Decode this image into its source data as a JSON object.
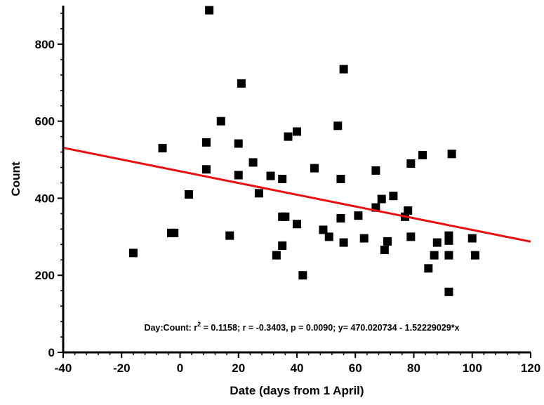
{
  "chart_data": {
    "type": "scatter",
    "title": "",
    "xlabel": "Date (days from 1 April)",
    "ylabel": "Count",
    "xlim": [
      -40,
      120
    ],
    "ylim": [
      0,
      900
    ],
    "xticks": [
      -40,
      -20,
      0,
      20,
      40,
      60,
      80,
      100,
      120
    ],
    "yticks": [
      0,
      200,
      400,
      600,
      800
    ],
    "grid": false,
    "legend": "none",
    "marker_color": "#000000",
    "line_color": "#e81010",
    "points": [
      {
        "x": -16,
        "y": 258
      },
      {
        "x": -6,
        "y": 530
      },
      {
        "x": -3,
        "y": 310
      },
      {
        "x": -2,
        "y": 310
      },
      {
        "x": 3,
        "y": 410
      },
      {
        "x": 9,
        "y": 545
      },
      {
        "x": 9,
        "y": 475
      },
      {
        "x": 10,
        "y": 888
      },
      {
        "x": 14,
        "y": 600
      },
      {
        "x": 17,
        "y": 303
      },
      {
        "x": 20,
        "y": 542
      },
      {
        "x": 20,
        "y": 460
      },
      {
        "x": 21,
        "y": 698
      },
      {
        "x": 25,
        "y": 493
      },
      {
        "x": 27,
        "y": 413
      },
      {
        "x": 31,
        "y": 458
      },
      {
        "x": 33,
        "y": 252
      },
      {
        "x": 35,
        "y": 450
      },
      {
        "x": 35,
        "y": 352
      },
      {
        "x": 35,
        "y": 277
      },
      {
        "x": 36,
        "y": 352
      },
      {
        "x": 37,
        "y": 560
      },
      {
        "x": 40,
        "y": 573
      },
      {
        "x": 40,
        "y": 333
      },
      {
        "x": 42,
        "y": 200
      },
      {
        "x": 46,
        "y": 478
      },
      {
        "x": 49,
        "y": 318
      },
      {
        "x": 51,
        "y": 300
      },
      {
        "x": 54,
        "y": 588
      },
      {
        "x": 55,
        "y": 450
      },
      {
        "x": 55,
        "y": 348
      },
      {
        "x": 56,
        "y": 735
      },
      {
        "x": 56,
        "y": 285
      },
      {
        "x": 61,
        "y": 355
      },
      {
        "x": 63,
        "y": 296
      },
      {
        "x": 67,
        "y": 472
      },
      {
        "x": 67,
        "y": 376
      },
      {
        "x": 69,
        "y": 398
      },
      {
        "x": 70,
        "y": 266
      },
      {
        "x": 71,
        "y": 288
      },
      {
        "x": 73,
        "y": 406
      },
      {
        "x": 77,
        "y": 352
      },
      {
        "x": 78,
        "y": 368
      },
      {
        "x": 79,
        "y": 490
      },
      {
        "x": 79,
        "y": 300
      },
      {
        "x": 83,
        "y": 512
      },
      {
        "x": 85,
        "y": 218
      },
      {
        "x": 87,
        "y": 252
      },
      {
        "x": 88,
        "y": 285
      },
      {
        "x": 92,
        "y": 303
      },
      {
        "x": 92,
        "y": 290
      },
      {
        "x": 92,
        "y": 252
      },
      {
        "x": 92,
        "y": 157
      },
      {
        "x": 93,
        "y": 515
      },
      {
        "x": 100,
        "y": 296
      },
      {
        "x": 101,
        "y": 252
      }
    ],
    "regression": {
      "intercept": 470.020734,
      "slope": -1.52229029
    },
    "annotation": {
      "prefix": "Day:Count:  r",
      "sup": "2",
      "suffix": " = 0.1158;  r = -0.3403, p = 0.0090;  y= 470.020734 - 1.52229029*x"
    }
  }
}
